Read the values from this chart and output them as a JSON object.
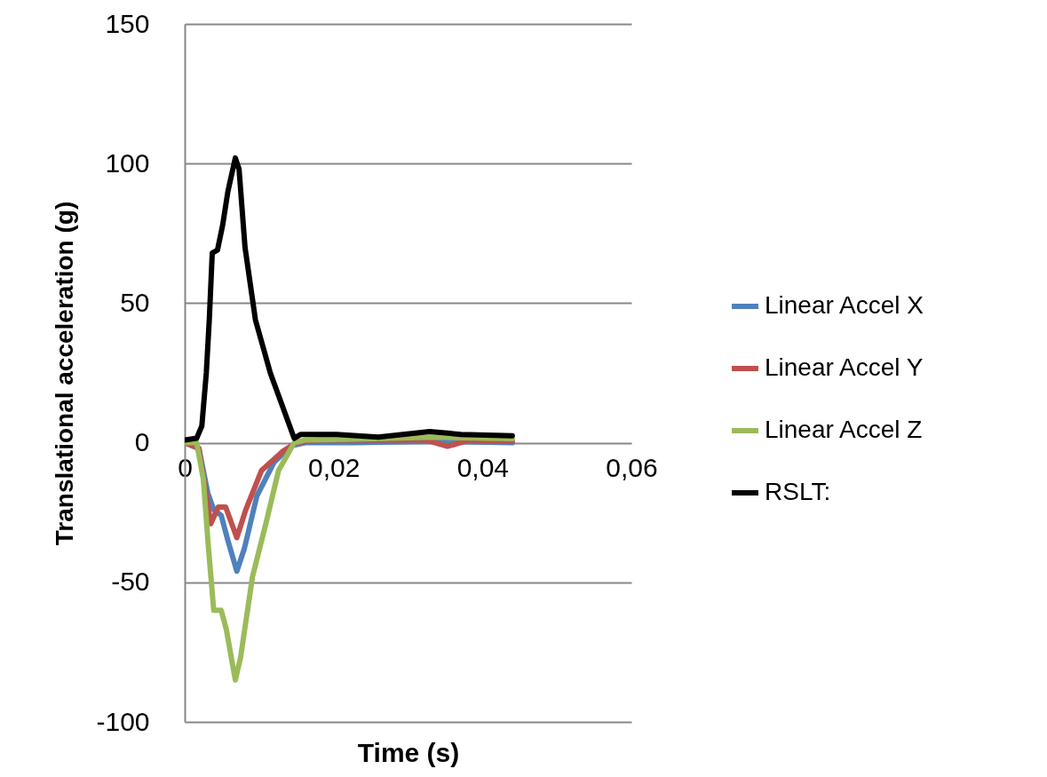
{
  "chart_data": {
    "type": "line",
    "xlabel": "Time (s)",
    "ylabel": "Translational acceleration (g)",
    "xlim": [
      0,
      0.06
    ],
    "xticks": [
      0,
      {
        "value": 0.02,
        "label": "0,02"
      },
      {
        "value": 0.04,
        "label": "0,04"
      },
      {
        "value": 0.06,
        "label": "0,06"
      }
    ],
    "ylim": [
      -100,
      150
    ],
    "yticks": [
      -100,
      -50,
      0,
      50,
      100,
      150
    ],
    "grid": "y",
    "legend": "right",
    "marker": "none",
    "line_style": "solid",
    "series": [
      {
        "name": "Linear Accel X",
        "color": "#4f81bd",
        "x": [
          0,
          0.0019,
          0.0031,
          0.0039,
          0.0049,
          0.0058,
          0.007,
          0.008,
          0.0097,
          0.012,
          0.0144,
          0.0162,
          0.0228,
          0.0335,
          0.044
        ],
        "values": [
          0,
          -2,
          -18,
          -24,
          -26,
          -35,
          -46,
          -38,
          -19,
          -7,
          -1,
          0,
          0,
          0.5,
          0
        ]
      },
      {
        "name": "Linear Accel Y",
        "color": "#c0504d",
        "x": [
          0,
          0.0019,
          0.0035,
          0.0045,
          0.0055,
          0.007,
          0.0082,
          0.0103,
          0.0132,
          0.015,
          0.018,
          0.0252,
          0.0323,
          0.0353,
          0.0383,
          0.044
        ],
        "values": [
          0,
          -2,
          -29,
          -23,
          -23,
          -34,
          -24,
          -10,
          -3,
          0,
          1,
          1,
          1,
          -1.3,
          1,
          0.5
        ]
      },
      {
        "name": "Linear Accel Z",
        "color": "#9bbb59",
        "x": [
          0,
          0.0016,
          0.0025,
          0.0032,
          0.0039,
          0.0049,
          0.0056,
          0.0068,
          0.0075,
          0.0091,
          0.0109,
          0.0126,
          0.0147,
          0.0162,
          0.0228,
          0.0335,
          0.044
        ],
        "values": [
          0,
          0,
          -13,
          -38,
          -60,
          -60,
          -67,
          -85,
          -77,
          -48,
          -29,
          -10,
          0,
          1,
          1.3,
          2,
          1.5
        ]
      },
      {
        "name": "RSLT:",
        "color": "#000000",
        "x": [
          0,
          0.0016,
          0.0023,
          0.0029,
          0.0033,
          0.0037,
          0.0044,
          0.0051,
          0.0058,
          0.0068,
          0.0073,
          0.0081,
          0.0095,
          0.0115,
          0.0147,
          0.0156,
          0.0204,
          0.026,
          0.0329,
          0.0371,
          0.044
        ],
        "values": [
          1,
          1.6,
          6,
          25,
          44,
          68,
          69,
          78,
          90,
          102,
          98,
          70,
          44,
          25,
          1.6,
          3,
          3,
          2,
          4,
          3,
          2.5
        ]
      }
    ]
  }
}
